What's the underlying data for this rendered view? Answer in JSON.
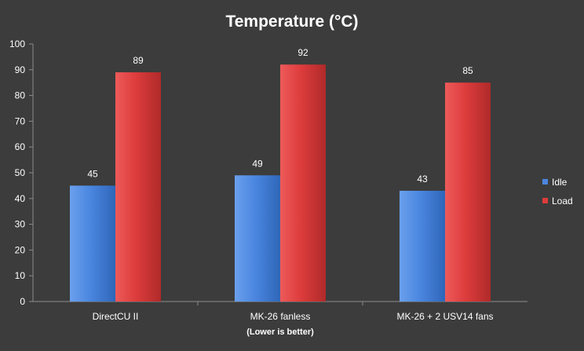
{
  "chart_data": {
    "type": "bar",
    "title": "Temperature (°C)",
    "xlabel": "(Lower is better)",
    "ylabel": "",
    "categories": [
      "DirectCU II",
      "MK-26 fanless",
      "MK-26 + 2 USV14  fans"
    ],
    "series": [
      {
        "name": "Idle",
        "values": [
          45,
          49,
          43
        ],
        "color": "#4a86e0"
      },
      {
        "name": "Load",
        "values": [
          89,
          92,
          85
        ],
        "color": "#dd3c3c"
      }
    ],
    "ylim": [
      0,
      100
    ],
    "yticks": [
      0,
      10,
      20,
      30,
      40,
      50,
      60,
      70,
      80,
      90,
      100
    ],
    "grid": false,
    "legend": "right",
    "data_labels": true,
    "background": "#3c3c3c",
    "axis_color": "#8c8c8c"
  }
}
